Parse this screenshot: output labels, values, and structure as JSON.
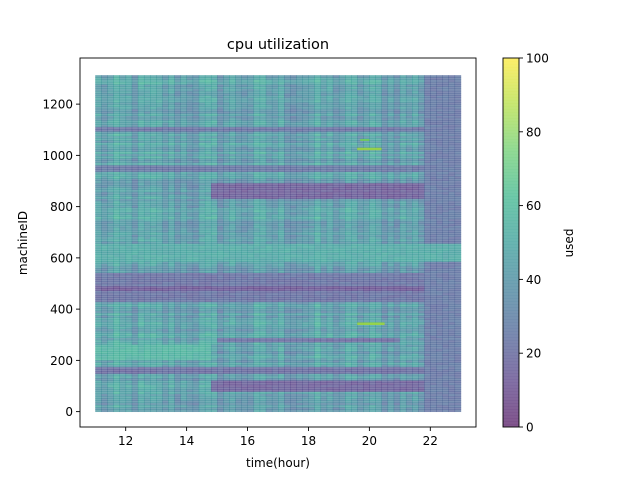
{
  "chart_data": {
    "type": "heatmap",
    "title": "cpu utilization",
    "xlabel": "time(hour)",
    "ylabel": "machineID",
    "colorbar_label": "used",
    "colormap": "viridis",
    "alpha": 0.65,
    "x_range": [
      11,
      23
    ],
    "y_range": [
      0,
      1313
    ],
    "xlim": [
      10.5,
      23.5
    ],
    "ylim": [
      -60,
      1380
    ],
    "x_ticks": [
      12,
      14,
      16,
      18,
      20,
      22
    ],
    "y_ticks": [
      0,
      200,
      400,
      600,
      800,
      1000,
      1200
    ],
    "colorbar_range": [
      0,
      100
    ],
    "colorbar_ticks": [
      0,
      20,
      40,
      60,
      80,
      100
    ],
    "base_level": 42,
    "features": [
      {
        "kind": "band",
        "y": [
          80,
          125
        ],
        "x": [
          14.8,
          23
        ],
        "value": 15
      },
      {
        "kind": "band",
        "y": [
          835,
          895
        ],
        "x": [
          14.8,
          23
        ],
        "value": 14
      },
      {
        "kind": "band",
        "y": [
          430,
          545
        ],
        "x": [
          11,
          23
        ],
        "value": 22
      },
      {
        "kind": "band",
        "y": [
          470,
          490
        ],
        "x": [
          11,
          23
        ],
        "value": 12
      },
      {
        "kind": "band",
        "y": [
          270,
          290
        ],
        "x": [
          15,
          21
        ],
        "value": 20
      },
      {
        "kind": "band",
        "y": [
          615,
          630
        ],
        "x": [
          15.1,
          16.9
        ],
        "value": 12
      },
      {
        "kind": "band",
        "y": [
          1090,
          1115
        ],
        "x": [
          11,
          23
        ],
        "value": 22
      },
      {
        "kind": "band",
        "y": [
          940,
          960
        ],
        "x": [
          11,
          23
        ],
        "value": 24
      },
      {
        "kind": "band",
        "y": [
          150,
          175
        ],
        "x": [
          11,
          23
        ],
        "value": 20
      },
      {
        "kind": "band",
        "y": [
          0,
          1313
        ],
        "x": [
          21.9,
          23
        ],
        "value": 25
      },
      {
        "kind": "band",
        "y": [
          590,
          660
        ],
        "x": [
          11,
          23
        ],
        "value": 50
      },
      {
        "kind": "band",
        "y": [
          200,
          260
        ],
        "x": [
          11,
          14.8
        ],
        "value": 55
      },
      {
        "kind": "spot",
        "y": [
          1020,
          1030
        ],
        "x": [
          19.6,
          20.4
        ],
        "value": 85
      },
      {
        "kind": "spot",
        "y": [
          338,
          348
        ],
        "x": [
          19.6,
          20.5
        ],
        "value": 85
      },
      {
        "kind": "spot",
        "y": [
          1058,
          1064
        ],
        "x": [
          19.7,
          20.0
        ],
        "value": 78
      }
    ]
  }
}
